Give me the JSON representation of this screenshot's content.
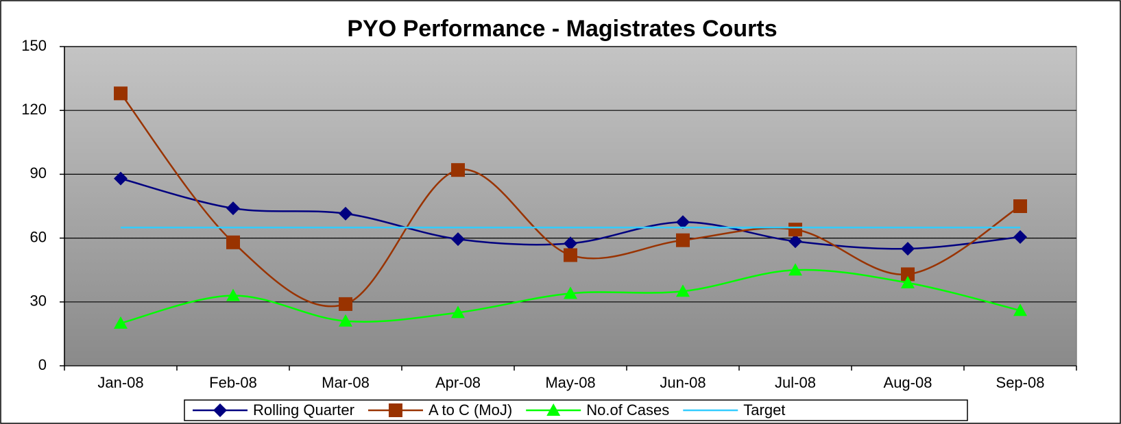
{
  "chart_data": {
    "type": "line",
    "title": "PYO Performance - Magistrates Courts",
    "categories": [
      "Jan-08",
      "Feb-08",
      "Mar-08",
      "Apr-08",
      "May-08",
      "Jun-08",
      "Jul-08",
      "Aug-08",
      "Sep-08"
    ],
    "series": [
      {
        "name": "Rolling Quarter",
        "color": "#000080",
        "marker": "diamond",
        "values": [
          88,
          74,
          71.5,
          59.5,
          57.5,
          67.5,
          58.5,
          55,
          60.5
        ]
      },
      {
        "name": "A to C (MoJ)",
        "color": "#993300",
        "marker": "square",
        "values": [
          128,
          58,
          29,
          92,
          52,
          59,
          64,
          43,
          75
        ]
      },
      {
        "name": "No.of Cases",
        "color": "#00ff00",
        "marker": "triangle",
        "values": [
          20,
          33,
          21,
          25,
          34,
          35,
          45,
          39,
          26
        ]
      },
      {
        "name": "Target",
        "color": "#33ccff",
        "marker": "none",
        "values": [
          65,
          65,
          65,
          65,
          65,
          65,
          65,
          65,
          65
        ]
      }
    ],
    "ylim": [
      0,
      150
    ],
    "yticks": [
      0,
      30,
      60,
      90,
      120,
      150
    ],
    "grid": true,
    "smooth": true,
    "legend": "bottom"
  }
}
